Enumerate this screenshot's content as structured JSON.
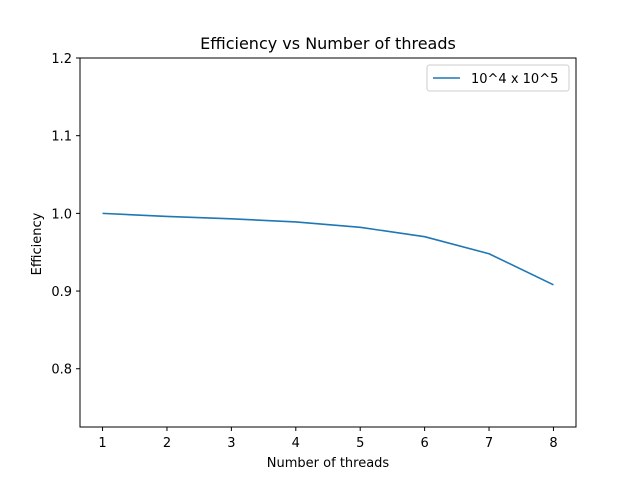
{
  "chart_data": {
    "type": "line",
    "title": "Efficiency vs Number of threads",
    "xlabel": "Number of threads",
    "ylabel": "Efficiency",
    "x": [
      1,
      2,
      3,
      4,
      5,
      6,
      7,
      8
    ],
    "xticks": [
      "1",
      "2",
      "3",
      "4",
      "5",
      "6",
      "7",
      "8"
    ],
    "yticks": [
      "0.8",
      "0.9",
      "1.0",
      "1.1",
      "1.2"
    ],
    "xlim": [
      0.65,
      8.35
    ],
    "ylim": [
      0.725,
      1.2
    ],
    "series": [
      {
        "name": "10^4 x 10^5",
        "color": "#1f77b4",
        "values": [
          1.0,
          0.996,
          0.993,
          0.989,
          0.982,
          0.97,
          0.948,
          0.908
        ]
      }
    ],
    "legend_position": "top-right",
    "grid": false
  }
}
